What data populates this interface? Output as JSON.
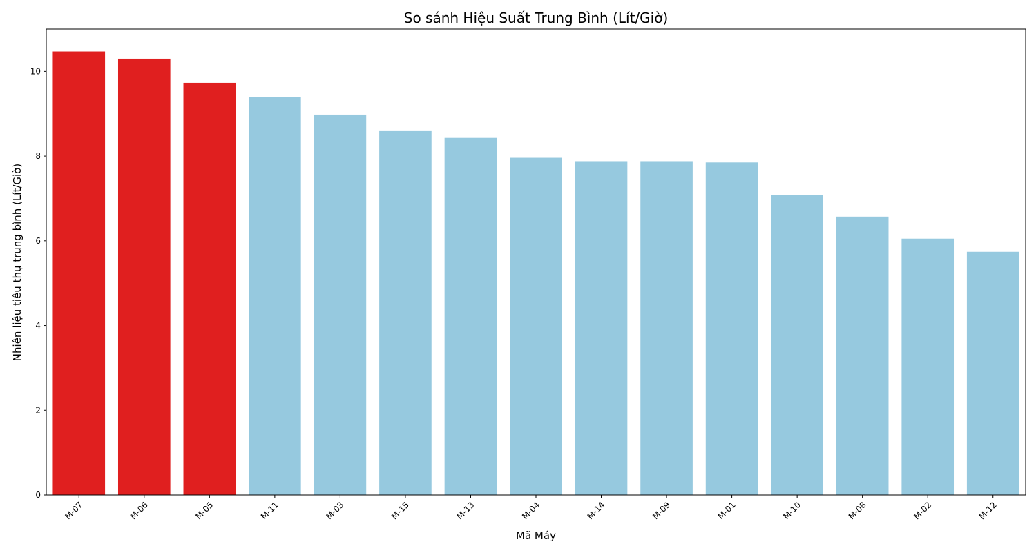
{
  "chart_data": {
    "type": "bar",
    "title": "So sánh Hiệu Suất Trung Bình (Lít/Giờ)",
    "xlabel": "Mã Máy",
    "ylabel": "Nhiên liệu tiêu thụ trung bình (Lít/Giờ)",
    "categories": [
      "M-07",
      "M-06",
      "M-05",
      "M-11",
      "M-03",
      "M-15",
      "M-13",
      "M-04",
      "M-14",
      "M-09",
      "M-01",
      "M-10",
      "M-08",
      "M-02",
      "M-12"
    ],
    "values": [
      10.47,
      10.3,
      9.73,
      9.39,
      8.98,
      8.59,
      8.43,
      7.96,
      7.88,
      7.88,
      7.85,
      7.08,
      6.57,
      6.05,
      5.74
    ],
    "highlighted": [
      true,
      true,
      true,
      false,
      false,
      false,
      false,
      false,
      false,
      false,
      false,
      false,
      false,
      false,
      false
    ],
    "ylim": [
      0,
      11
    ],
    "yticks": [
      0,
      2,
      4,
      6,
      8,
      10
    ],
    "x_tick_rotation_deg": 45,
    "grid": false,
    "colors": {
      "highlight": "#e01f1f",
      "normal": "#96c9df",
      "axis": "#000000"
    }
  }
}
